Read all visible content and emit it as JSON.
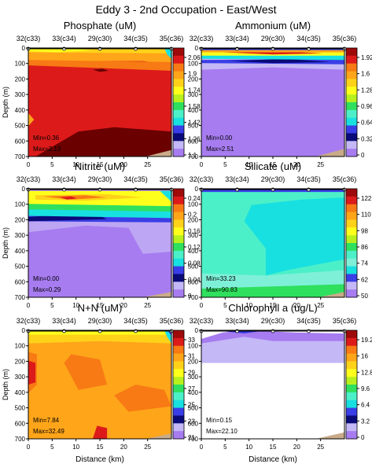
{
  "page_title": "Eddy 3 - 2nd Occupation - East/West",
  "xlabel": "Distance (km)",
  "ylabel": "Depth (m)",
  "station_labels": [
    "32(c33)",
    "33(c34)",
    "29(c30)",
    "34(c35)",
    "35(c36)"
  ],
  "colors": {
    "purple": "#a77cf0",
    "lightpurple": "#bda6f3",
    "lavender": "#c4b8f6",
    "blue": "#3a3ee6",
    "navy": "#0a0a78",
    "cyan": "#18e0e0",
    "lightcyan": "#7ff0d8",
    "aqua": "#4cf0c8",
    "green": "#2ee05e",
    "lime": "#b8f01e",
    "yellow": "#ffff1c",
    "gold": "#ffd21a",
    "orange": "#ffa519",
    "darkorange": "#f77a14",
    "red": "#dd1a1a",
    "darkred": "#9e0a0a",
    "maroon": "#6a0000",
    "tan": "#c9ab8a"
  },
  "chart_data": [
    {
      "type": "heatmap",
      "title": "Phosphate (uM)",
      "xlim": [
        0,
        30
      ],
      "xticks": [
        0,
        5,
        10,
        15,
        20,
        25
      ],
      "ylim": [
        0,
        700
      ],
      "yticks": [
        0,
        100,
        200,
        300,
        400,
        500,
        600,
        700
      ],
      "station_x": [
        0,
        7.5,
        15,
        22.5,
        30
      ],
      "colorbar_ticks": [
        "2.06",
        "1.9",
        "1.74",
        "1.58",
        "1.42",
        "1.26",
        "1.1"
      ],
      "min_label": "Min=0.36",
      "max_label": "Max=2.13",
      "min_color": "#ffffff",
      "max_color": "#ffffff",
      "legend_location": "bottom-left"
    },
    {
      "type": "heatmap",
      "title": "Ammonium (uM)",
      "xlim": [
        0,
        30
      ],
      "xticks": [
        0,
        5,
        10,
        15,
        20,
        25
      ],
      "ylim": [
        0,
        700
      ],
      "yticks": [
        0,
        100,
        200,
        300,
        400,
        500,
        600,
        700
      ],
      "station_x": [
        0,
        7.5,
        15,
        22.5,
        30
      ],
      "colorbar_ticks": [
        "1.92",
        "1.6",
        "1.28",
        "0.96",
        "0.64",
        "0.32",
        "0"
      ],
      "min_label": "Min=0.00",
      "max_label": "Max=2.51",
      "min_color": "#ffffff",
      "max_color": "#ffffff",
      "legend_location": "bottom-left"
    },
    {
      "type": "heatmap",
      "title": "Nitrite (uM)",
      "xlim": [
        0,
        30
      ],
      "xticks": [
        0,
        5,
        10,
        15,
        20,
        25
      ],
      "ylim": [
        0,
        700
      ],
      "yticks": [
        0,
        100,
        200,
        300,
        400,
        500,
        600,
        700
      ],
      "station_x": [
        0,
        7.5,
        15,
        22.5,
        30
      ],
      "colorbar_ticks": [
        "0.24",
        "0.2",
        "0.16",
        "0.12",
        "0.08",
        "0.04",
        "0"
      ],
      "min_label": "Min=0.00",
      "max_label": "Max=0.29",
      "min_color": "#ffffff",
      "max_color": "#ffffff",
      "legend_location": "bottom-left"
    },
    {
      "type": "heatmap",
      "title": "Silicate (uM)",
      "xlim": [
        0,
        30
      ],
      "xticks": [
        0,
        5,
        10,
        15,
        20,
        25
      ],
      "ylim": [
        0,
        700
      ],
      "yticks": [
        0,
        100,
        200,
        300,
        400,
        500,
        600,
        700
      ],
      "station_x": [
        0,
        7.5,
        15,
        22.5,
        30
      ],
      "colorbar_ticks": [
        "122",
        "110",
        "98",
        "86",
        "74",
        "62",
        "50"
      ],
      "min_label": "Min=33.23",
      "max_label": "Max=90.83",
      "min_color": "#ffffff",
      "max_color": "#ffffff",
      "legend_location": "bottom-left"
    },
    {
      "type": "heatmap",
      "title": "N+N (uM)",
      "xlim": [
        0,
        30
      ],
      "xticks": [
        0,
        5,
        10,
        15,
        20,
        25
      ],
      "ylim": [
        0,
        700
      ],
      "yticks": [
        0,
        100,
        200,
        300,
        400,
        500,
        600,
        700
      ],
      "station_x": [
        0,
        7.5,
        15,
        22.5,
        30
      ],
      "colorbar_ticks": [
        "33",
        "31",
        "29",
        "27",
        "25",
        "23",
        "21"
      ],
      "min_label": "Min=7.84",
      "max_label": "Max=32.49",
      "min_color": "#ffffff",
      "max_color": "#ffffff",
      "legend_location": "bottom-left"
    },
    {
      "type": "heatmap",
      "title": "Chlorophyll a  (ug/L)",
      "xlim": [
        0,
        30
      ],
      "xticks": [
        0,
        5,
        10,
        15,
        20,
        25
      ],
      "ylim": [
        0,
        700
      ],
      "yticks": [
        0,
        100,
        200,
        300,
        400,
        500,
        600,
        700
      ],
      "station_x": [
        0,
        7.5,
        15,
        22.5,
        30
      ],
      "colorbar_ticks": [
        "19.2",
        "16",
        "12.8",
        "9.6",
        "6.4",
        "3.2",
        "0"
      ],
      "min_label": "Min=0.15",
      "max_label": "Max=22.10",
      "min_color": "#000000",
      "max_color": "#000000",
      "legend_location": "bottom-left"
    }
  ]
}
